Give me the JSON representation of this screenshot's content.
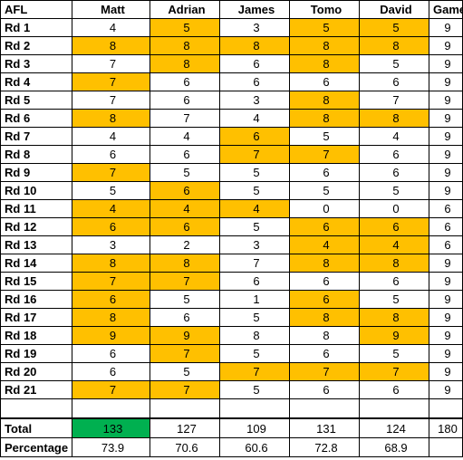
{
  "colors": {
    "highlight": "#ffc000",
    "best_total": "#00b050"
  },
  "header": {
    "corner": "AFL",
    "players": [
      "Matt",
      "Adrian",
      "James",
      "Tomo",
      "David"
    ],
    "games": "Games"
  },
  "rounds": [
    {
      "label": "Rd 1",
      "scores": [
        "4",
        "5",
        "3",
        "5",
        "5"
      ],
      "hl": [
        false,
        true,
        false,
        true,
        true
      ],
      "games": "9"
    },
    {
      "label": "Rd 2",
      "scores": [
        "8",
        "8",
        "8",
        "8",
        "8"
      ],
      "hl": [
        true,
        true,
        true,
        true,
        true
      ],
      "games": "9"
    },
    {
      "label": "Rd 3",
      "scores": [
        "7",
        "8",
        "6",
        "8",
        "5"
      ],
      "hl": [
        false,
        true,
        false,
        true,
        false
      ],
      "games": "9"
    },
    {
      "label": "Rd 4",
      "scores": [
        "7",
        "6",
        "6",
        "6",
        "6"
      ],
      "hl": [
        true,
        false,
        false,
        false,
        false
      ],
      "games": "9"
    },
    {
      "label": "Rd 5",
      "scores": [
        "7",
        "6",
        "3",
        "8",
        "7"
      ],
      "hl": [
        false,
        false,
        false,
        true,
        false
      ],
      "games": "9"
    },
    {
      "label": "Rd 6",
      "scores": [
        "8",
        "7",
        "4",
        "8",
        "8"
      ],
      "hl": [
        true,
        false,
        false,
        true,
        true
      ],
      "games": "9"
    },
    {
      "label": "Rd 7",
      "scores": [
        "4",
        "4",
        "6",
        "5",
        "4"
      ],
      "hl": [
        false,
        false,
        true,
        false,
        false
      ],
      "games": "9"
    },
    {
      "label": "Rd 8",
      "scores": [
        "6",
        "6",
        "7",
        "7",
        "6"
      ],
      "hl": [
        false,
        false,
        true,
        true,
        false
      ],
      "games": "9"
    },
    {
      "label": "Rd 9",
      "scores": [
        "7",
        "5",
        "5",
        "6",
        "6"
      ],
      "hl": [
        true,
        false,
        false,
        false,
        false
      ],
      "games": "9"
    },
    {
      "label": "Rd 10",
      "scores": [
        "5",
        "6",
        "5",
        "5",
        "5"
      ],
      "hl": [
        false,
        true,
        false,
        false,
        false
      ],
      "games": "9"
    },
    {
      "label": "Rd 11",
      "scores": [
        "4",
        "4",
        "4",
        "0",
        "0"
      ],
      "hl": [
        true,
        true,
        true,
        false,
        false
      ],
      "games": "6"
    },
    {
      "label": "Rd 12",
      "scores": [
        "6",
        "6",
        "5",
        "6",
        "6"
      ],
      "hl": [
        true,
        true,
        false,
        true,
        true
      ],
      "games": "6"
    },
    {
      "label": "Rd 13",
      "scores": [
        "3",
        "2",
        "3",
        "4",
        "4"
      ],
      "hl": [
        false,
        false,
        false,
        true,
        true
      ],
      "games": "6"
    },
    {
      "label": "Rd 14",
      "scores": [
        "8",
        "8",
        "7",
        "8",
        "8"
      ],
      "hl": [
        true,
        true,
        false,
        true,
        true
      ],
      "games": "9"
    },
    {
      "label": "Rd 15",
      "scores": [
        "7",
        "7",
        "6",
        "6",
        "6"
      ],
      "hl": [
        true,
        true,
        false,
        false,
        false
      ],
      "games": "9"
    },
    {
      "label": "Rd 16",
      "scores": [
        "6",
        "5",
        "1",
        "6",
        "5"
      ],
      "hl": [
        true,
        false,
        false,
        true,
        false
      ],
      "games": "9"
    },
    {
      "label": "Rd 17",
      "scores": [
        "8",
        "6",
        "5",
        "8",
        "8"
      ],
      "hl": [
        true,
        false,
        false,
        true,
        true
      ],
      "games": "9"
    },
    {
      "label": "Rd 18",
      "scores": [
        "9",
        "9",
        "8",
        "8",
        "9"
      ],
      "hl": [
        true,
        true,
        false,
        false,
        true
      ],
      "games": "9"
    },
    {
      "label": "Rd 19",
      "scores": [
        "6",
        "7",
        "5",
        "6",
        "5"
      ],
      "hl": [
        false,
        true,
        false,
        false,
        false
      ],
      "games": "9"
    },
    {
      "label": "Rd 20",
      "scores": [
        "6",
        "5",
        "7",
        "7",
        "7"
      ],
      "hl": [
        false,
        false,
        true,
        true,
        true
      ],
      "games": "9"
    },
    {
      "label": "Rd 21",
      "scores": [
        "7",
        "7",
        "5",
        "6",
        "6"
      ],
      "hl": [
        true,
        true,
        false,
        false,
        false
      ],
      "games": "9"
    }
  ],
  "total": {
    "label": "Total",
    "values": [
      "133",
      "127",
      "109",
      "131",
      "124"
    ],
    "games": "180"
  },
  "percentage": {
    "label": "Percentage",
    "values": [
      "73.9",
      "70.6",
      "60.6",
      "72.8",
      "68.9"
    ],
    "games": ""
  }
}
